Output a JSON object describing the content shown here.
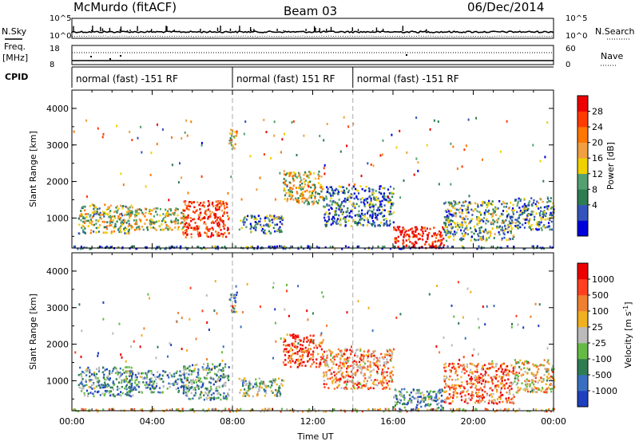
{
  "header": {
    "station": "McMurdo (fitACF)",
    "beam": "Beam 03",
    "date": "06/Dec/2014"
  },
  "top_panels": {
    "nsky_label": "N.Sky",
    "nsky_ticks": [
      "10^5",
      "10^0"
    ],
    "nsearch_label": "N.Search",
    "nsearch_ticks": [
      "10^5",
      "10^0"
    ],
    "freq_label_line1": "Freq.",
    "freq_label_line2": "[MHz]",
    "freq_ticks": [
      "18",
      "8"
    ],
    "nave_label": "Nave",
    "nave_ticks": [
      "60",
      "0"
    ],
    "cpid_label": "CPID",
    "cpid_segments": [
      {
        "label": "normal (fast) -151 RF",
        "start_hour": 0,
        "end_hour": 8
      },
      {
        "label": "normal (fast) 151 RF",
        "start_hour": 8,
        "end_hour": 14
      },
      {
        "label": "normal (fast) -151 RF",
        "start_hour": 14,
        "end_hour": 24
      }
    ]
  },
  "chart_data": [
    {
      "type": "heatmap",
      "title": "",
      "ylabel": "Slant Range [km]",
      "xlabel": "Time UT",
      "ylim": [
        180,
        4500
      ],
      "xlim": [
        0,
        24
      ],
      "yticks": [
        "4000",
        "3000",
        "2000",
        "1000"
      ],
      "xticks": [
        "00:00",
        "04:00",
        "08:00",
        "12:00",
        "16:00",
        "20:00",
        "00:00"
      ],
      "colorbar": {
        "label": "Power [dB]",
        "ticks": [
          "28",
          "24",
          "20",
          "16",
          "12",
          "8",
          "4"
        ],
        "colors": [
          "#0000dd",
          "#3355bb",
          "#2e7d52",
          "#55a070",
          "#f0d000",
          "#f0a040",
          "#ff7700",
          "#ff3b00",
          "#ee0000"
        ]
      },
      "scatter_regions": [
        {
          "t0": 0.3,
          "t1": 3.0,
          "r0": 600,
          "r1": 1400,
          "level": 0.45
        },
        {
          "t0": 2.8,
          "t1": 5.6,
          "r0": 700,
          "r1": 1300,
          "level": 0.5
        },
        {
          "t0": 5.5,
          "t1": 7.8,
          "r0": 500,
          "r1": 1500,
          "level": 0.85
        },
        {
          "t0": 8.3,
          "t1": 10.5,
          "r0": 600,
          "r1": 1100,
          "level": 0.3
        },
        {
          "t0": 10.5,
          "t1": 12.5,
          "r0": 1400,
          "r1": 2300,
          "level": 0.5
        },
        {
          "t0": 12.5,
          "t1": 16.0,
          "r0": 800,
          "r1": 1900,
          "level": 0.25
        },
        {
          "t0": 16.0,
          "t1": 18.5,
          "r0": 200,
          "r1": 800,
          "level": 0.95
        },
        {
          "t0": 18.5,
          "t1": 22.0,
          "r0": 400,
          "r1": 1500,
          "level": 0.35
        },
        {
          "t0": 22.0,
          "t1": 24.0,
          "r0": 700,
          "r1": 1600,
          "level": 0.3
        },
        {
          "t0": 7.8,
          "t1": 8.2,
          "r0": 2900,
          "r1": 3500,
          "level": 0.6
        },
        {
          "t0": 0.0,
          "t1": 24.0,
          "r0": 180,
          "r1": 260,
          "level": 0.2
        }
      ]
    },
    {
      "type": "heatmap",
      "title": "",
      "ylabel": "Slant Range [km]",
      "xlabel": "Time UT",
      "ylim": [
        180,
        4500
      ],
      "xlim": [
        0,
        24
      ],
      "yticks": [
        "4000",
        "3000",
        "2000",
        "1000"
      ],
      "xticks": [
        "00:00",
        "04:00",
        "08:00",
        "12:00",
        "16:00",
        "20:00",
        "00:00"
      ],
      "colorbar": {
        "label": "Velocity [m s",
        "label_sup": "-1",
        "label_end": "]",
        "ticks": [
          "1000",
          "500",
          "100",
          "25",
          "-25",
          "-100",
          "-500",
          "-1000"
        ],
        "colors": [
          "#1f3fbf",
          "#3a6fc0",
          "#2e7d52",
          "#66bb44",
          "#bbbbbb",
          "#f0b020",
          "#f08030",
          "#ff4020",
          "#ee0000"
        ]
      },
      "scatter_regions": [
        {
          "t0": 0.3,
          "t1": 3.0,
          "r0": 600,
          "r1": 1400,
          "level": 0.3
        },
        {
          "t0": 2.8,
          "t1": 5.6,
          "r0": 700,
          "r1": 1300,
          "level": 0.3
        },
        {
          "t0": 5.5,
          "t1": 7.8,
          "r0": 500,
          "r1": 1500,
          "level": 0.3
        },
        {
          "t0": 8.3,
          "t1": 10.5,
          "r0": 600,
          "r1": 1100,
          "level": 0.4
        },
        {
          "t0": 10.5,
          "t1": 12.5,
          "r0": 1400,
          "r1": 2300,
          "level": 0.85
        },
        {
          "t0": 12.5,
          "t1": 16.0,
          "r0": 800,
          "r1": 1900,
          "level": 0.7
        },
        {
          "t0": 16.0,
          "t1": 18.5,
          "r0": 200,
          "r1": 800,
          "level": 0.3
        },
        {
          "t0": 18.5,
          "t1": 22.0,
          "r0": 400,
          "r1": 1500,
          "level": 0.75
        },
        {
          "t0": 22.0,
          "t1": 24.0,
          "r0": 700,
          "r1": 1600,
          "level": 0.55
        },
        {
          "t0": 7.8,
          "t1": 8.2,
          "r0": 2900,
          "r1": 3500,
          "level": 0.35
        },
        {
          "t0": 0.0,
          "t1": 24.0,
          "r0": 180,
          "r1": 260,
          "level": 0.6
        }
      ]
    }
  ]
}
